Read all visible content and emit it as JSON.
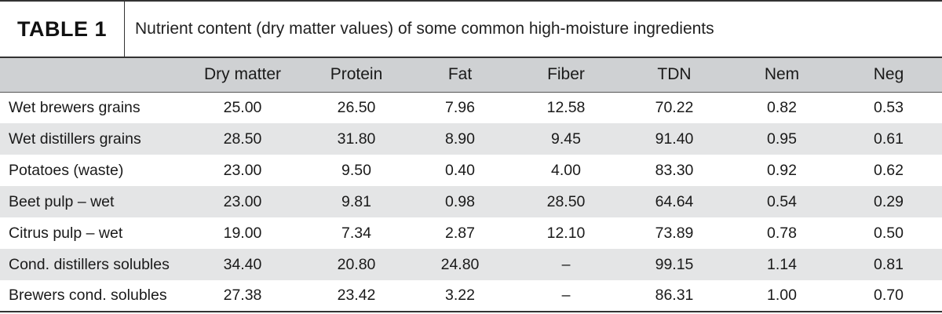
{
  "table_tag": "TABLE 1",
  "caption": "Nutrient content (dry matter values) of some common high-moisture ingredients",
  "columns": [
    "",
    "Dry matter",
    "Protein",
    "Fat",
    "Fiber",
    "TDN",
    "Nem",
    "Neg"
  ],
  "rows": [
    [
      "Wet brewers grains",
      "25.00",
      "26.50",
      "7.96",
      "12.58",
      "70.22",
      "0.82",
      "0.53"
    ],
    [
      "Wet distillers grains",
      "28.50",
      "31.80",
      "8.90",
      "9.45",
      "91.40",
      "0.95",
      "0.61"
    ],
    [
      "Potatoes (waste)",
      "23.00",
      "9.50",
      "0.40",
      "4.00",
      "83.30",
      "0.92",
      "0.62"
    ],
    [
      "Beet pulp – wet",
      "23.00",
      "9.81",
      "0.98",
      "28.50",
      "64.64",
      "0.54",
      "0.29"
    ],
    [
      "Citrus pulp – wet",
      "19.00",
      "7.34",
      "2.87",
      "12.10",
      "73.89",
      "0.78",
      "0.50"
    ],
    [
      "Cond. distillers solubles",
      "34.40",
      "20.80",
      "24.80",
      "–",
      "99.15",
      "1.14",
      "0.81"
    ],
    [
      "Brewers cond. solubles",
      "27.38",
      "23.42",
      "3.22",
      "–",
      "86.31",
      "1.00",
      "0.70"
    ]
  ]
}
